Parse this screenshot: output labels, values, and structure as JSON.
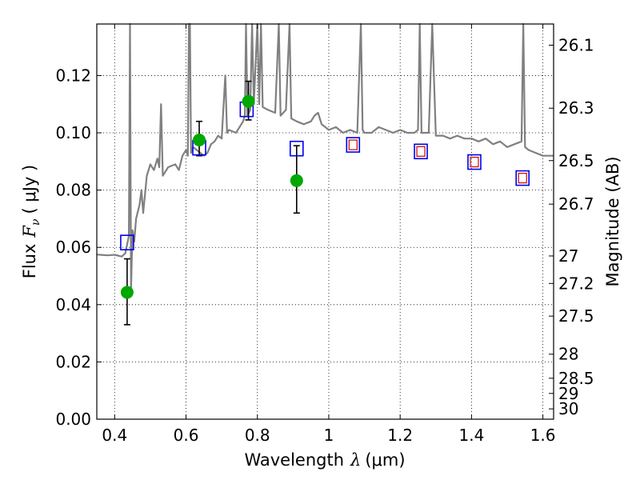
{
  "chart_data": {
    "type": "scatter",
    "title": "",
    "xlabel": {
      "prefix": "Wavelength",
      "symbol": "λ",
      "unit": "(μm)"
    },
    "ylabel": {
      "prefix": "Flux",
      "symbol": "F",
      "subscript": "ν",
      "unit": "( μJy )"
    },
    "y2label": "Magnitude (AB)",
    "xlim": [
      0.35,
      1.63
    ],
    "ylim": [
      0.0,
      0.138
    ],
    "grid": true,
    "x_ticks": [
      0.4,
      0.6,
      0.8,
      1.0,
      1.2,
      1.4,
      1.6
    ],
    "x_tick_labels": [
      "0.4",
      "0.6",
      "0.8",
      "1",
      "1.2",
      "1.4",
      "1.6"
    ],
    "y_ticks": [
      0.0,
      0.02,
      0.04,
      0.06,
      0.08,
      0.1,
      0.12
    ],
    "y_tick_labels": [
      "0.00",
      "0.02",
      "0.04",
      "0.06",
      "0.08",
      "0.10",
      "0.12"
    ],
    "y2_ticks": [
      {
        "label": "26.1",
        "flux": 0.1306
      },
      {
        "label": "26.3",
        "flux": 0.1086
      },
      {
        "label": "26.5",
        "flux": 0.0903
      },
      {
        "label": "26.7",
        "flux": 0.0751
      },
      {
        "label": "27",
        "flux": 0.057
      },
      {
        "label": "27.2",
        "flux": 0.0474
      },
      {
        "label": "27.5",
        "flux": 0.036
      },
      {
        "label": "28",
        "flux": 0.0227
      },
      {
        "label": "28.5",
        "flux": 0.0143
      },
      {
        "label": "29",
        "flux": 0.009
      },
      {
        "label": "30",
        "flux": 0.0036
      }
    ],
    "series": [
      {
        "kind": "line",
        "color": "#808080",
        "points": [
          [
            0.35,
            0.0575
          ],
          [
            0.38,
            0.0572
          ],
          [
            0.4,
            0.0574
          ],
          [
            0.42,
            0.0568
          ],
          [
            0.43,
            0.058
          ],
          [
            0.435,
            0.061
          ],
          [
            0.44,
            0.064
          ],
          [
            0.443,
            0.14
          ],
          [
            0.446,
            0.045
          ],
          [
            0.45,
            0.066
          ],
          [
            0.455,
            0.062
          ],
          [
            0.46,
            0.07
          ],
          [
            0.47,
            0.075
          ],
          [
            0.475,
            0.08
          ],
          [
            0.48,
            0.072
          ],
          [
            0.49,
            0.085
          ],
          [
            0.5,
            0.089
          ],
          [
            0.51,
            0.087
          ],
          [
            0.52,
            0.091
          ],
          [
            0.525,
            0.088
          ],
          [
            0.53,
            0.11
          ],
          [
            0.535,
            0.085
          ],
          [
            0.55,
            0.088
          ],
          [
            0.57,
            0.089
          ],
          [
            0.58,
            0.087
          ],
          [
            0.59,
            0.092
          ],
          [
            0.6,
            0.094
          ],
          [
            0.605,
            0.092
          ],
          [
            0.608,
            0.14
          ],
          [
            0.611,
            0.14
          ],
          [
            0.614,
            0.093
          ],
          [
            0.62,
            0.095
          ],
          [
            0.63,
            0.094
          ],
          [
            0.64,
            0.093
          ],
          [
            0.65,
            0.092
          ],
          [
            0.66,
            0.093
          ],
          [
            0.67,
            0.096
          ],
          [
            0.68,
            0.097
          ],
          [
            0.69,
            0.099
          ],
          [
            0.7,
            0.098
          ],
          [
            0.71,
            0.12
          ],
          [
            0.715,
            0.1
          ],
          [
            0.72,
            0.101
          ],
          [
            0.74,
            0.1
          ],
          [
            0.75,
            0.102
          ],
          [
            0.76,
            0.104
          ],
          [
            0.765,
            0.106
          ],
          [
            0.768,
            0.14
          ],
          [
            0.772,
            0.106
          ],
          [
            0.78,
            0.108
          ],
          [
            0.785,
            0.14
          ],
          [
            0.79,
            0.11
          ],
          [
            0.8,
            0.14
          ],
          [
            0.805,
            0.11
          ],
          [
            0.81,
            0.14
          ],
          [
            0.815,
            0.109
          ],
          [
            0.83,
            0.108
          ],
          [
            0.85,
            0.107
          ],
          [
            0.86,
            0.14
          ],
          [
            0.865,
            0.106
          ],
          [
            0.88,
            0.108
          ],
          [
            0.89,
            0.14
          ],
          [
            0.895,
            0.105
          ],
          [
            0.91,
            0.104
          ],
          [
            0.93,
            0.103
          ],
          [
            0.95,
            0.104
          ],
          [
            0.96,
            0.106
          ],
          [
            0.97,
            0.107
          ],
          [
            0.98,
            0.103
          ],
          [
            1.0,
            0.101
          ],
          [
            1.02,
            0.102
          ],
          [
            1.04,
            0.1
          ],
          [
            1.06,
            0.101
          ],
          [
            1.08,
            0.1
          ],
          [
            1.09,
            0.14
          ],
          [
            1.095,
            0.101
          ],
          [
            1.1,
            0.1
          ],
          [
            1.12,
            0.1
          ],
          [
            1.14,
            0.102
          ],
          [
            1.16,
            0.101
          ],
          [
            1.18,
            0.1
          ],
          [
            1.2,
            0.101
          ],
          [
            1.22,
            0.1
          ],
          [
            1.24,
            0.1
          ],
          [
            1.25,
            0.101
          ],
          [
            1.255,
            0.14
          ],
          [
            1.26,
            0.1
          ],
          [
            1.28,
            0.1
          ],
          [
            1.29,
            0.14
          ],
          [
            1.3,
            0.099
          ],
          [
            1.32,
            0.099
          ],
          [
            1.34,
            0.098
          ],
          [
            1.36,
            0.099
          ],
          [
            1.38,
            0.098
          ],
          [
            1.4,
            0.098
          ],
          [
            1.42,
            0.097
          ],
          [
            1.44,
            0.098
          ],
          [
            1.46,
            0.096
          ],
          [
            1.48,
            0.097
          ],
          [
            1.5,
            0.095
          ],
          [
            1.52,
            0.096
          ],
          [
            1.54,
            0.097
          ],
          [
            1.545,
            0.14
          ],
          [
            1.55,
            0.095
          ],
          [
            1.56,
            0.094
          ],
          [
            1.58,
            0.093
          ],
          [
            1.6,
            0.092
          ],
          [
            1.63,
            0.092
          ]
        ]
      },
      {
        "kind": "points",
        "color": "#00a800",
        "points": [
          {
            "x": 0.435,
            "y": 0.0443,
            "err_low": 0.033,
            "err_high": 0.056
          },
          {
            "x": 0.637,
            "y": 0.0975,
            "err_low": 0.092,
            "err_high": 0.104
          },
          {
            "x": 0.775,
            "y": 0.111,
            "err_low": 0.1045,
            "err_high": 0.118
          },
          {
            "x": 0.91,
            "y": 0.0833,
            "err_low": 0.072,
            "err_high": 0.0955
          }
        ]
      },
      {
        "kind": "squares",
        "color": "#0000ee",
        "points": [
          {
            "x": 0.435,
            "y": 0.0617
          },
          {
            "x": 0.637,
            "y": 0.0948
          },
          {
            "x": 0.77,
            "y": 0.1082
          },
          {
            "x": 0.91,
            "y": 0.0945
          },
          {
            "x": 1.068,
            "y": 0.0958
          },
          {
            "x": 1.258,
            "y": 0.0935
          },
          {
            "x": 1.408,
            "y": 0.0898
          },
          {
            "x": 1.543,
            "y": 0.0842
          }
        ]
      },
      {
        "kind": "small_squares",
        "color": "#cc0000",
        "points": [
          {
            "x": 1.068,
            "y": 0.0958
          },
          {
            "x": 1.258,
            "y": 0.0935
          },
          {
            "x": 1.408,
            "y": 0.0898
          },
          {
            "x": 1.543,
            "y": 0.0842
          }
        ]
      }
    ]
  }
}
